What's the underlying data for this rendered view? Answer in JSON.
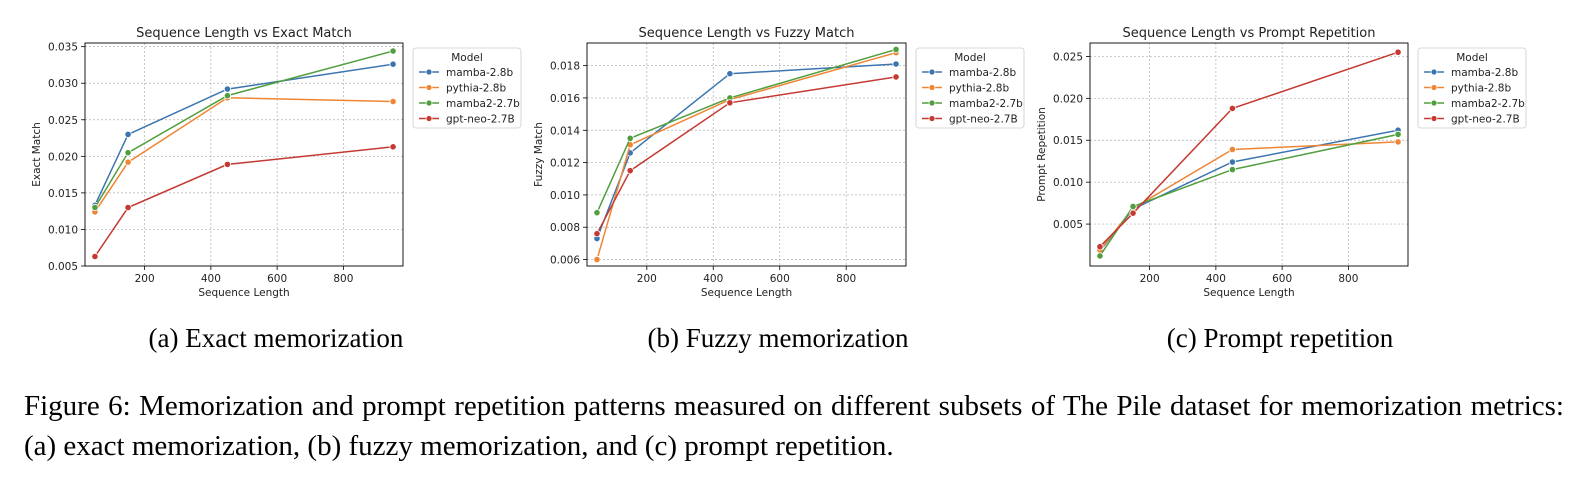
{
  "chart_data": [
    {
      "type": "line",
      "title": "Sequence Length vs Exact Match",
      "xlabel": "Sequence Length",
      "ylabel": "Exact Match",
      "x": [
        50,
        150,
        450,
        950
      ],
      "xlim": [
        20,
        980
      ],
      "xticks": [
        200,
        400,
        600,
        800
      ],
      "ylim": [
        0.005,
        0.0355
      ],
      "yticks": [
        0.005,
        0.01,
        0.015,
        0.02,
        0.025,
        0.03,
        0.035
      ],
      "ytick_labels": [
        "0.005",
        "0.010",
        "0.015",
        "0.020",
        "0.025",
        "0.030",
        "0.035"
      ],
      "grid": true,
      "legend_title": "Model",
      "legend_position": "outside-right",
      "series": [
        {
          "name": "mamba-2.8b",
          "color": "#3b75af",
          "values": [
            0.0133,
            0.023,
            0.0292,
            0.0326
          ]
        },
        {
          "name": "pythia-2.8b",
          "color": "#ef8636",
          "values": [
            0.0124,
            0.0192,
            0.028,
            0.0275
          ]
        },
        {
          "name": "mamba2-2.7b",
          "color": "#519e3e",
          "values": [
            0.013,
            0.0205,
            0.0283,
            0.0344
          ]
        },
        {
          "name": "gpt-neo-2.7B",
          "color": "#c53932",
          "values": [
            0.0063,
            0.013,
            0.0189,
            0.0213
          ]
        }
      ],
      "subcaption": "(a) Exact memorization"
    },
    {
      "type": "line",
      "title": "Sequence Length vs Fuzzy Match",
      "xlabel": "Sequence Length",
      "ylabel": "Fuzzy Match",
      "x": [
        50,
        150,
        450,
        950
      ],
      "xlim": [
        20,
        980
      ],
      "xticks": [
        200,
        400,
        600,
        800
      ],
      "ylim": [
        0.0056,
        0.0194
      ],
      "yticks": [
        0.006,
        0.008,
        0.01,
        0.012,
        0.014,
        0.016,
        0.018
      ],
      "ytick_labels": [
        "0.006",
        "0.008",
        "0.010",
        "0.012",
        "0.014",
        "0.016",
        "0.018"
      ],
      "grid": true,
      "legend_title": "Model",
      "legend_position": "outside-right",
      "series": [
        {
          "name": "mamba-2.8b",
          "color": "#3b75af",
          "values": [
            0.0073,
            0.0126,
            0.0175,
            0.0181
          ]
        },
        {
          "name": "pythia-2.8b",
          "color": "#ef8636",
          "values": [
            0.006,
            0.0131,
            0.0159,
            0.0188
          ]
        },
        {
          "name": "mamba2-2.7b",
          "color": "#519e3e",
          "values": [
            0.0089,
            0.0135,
            0.016,
            0.019
          ]
        },
        {
          "name": "gpt-neo-2.7B",
          "color": "#c53932",
          "values": [
            0.0076,
            0.0115,
            0.0157,
            0.0173
          ]
        }
      ],
      "subcaption": "(b) Fuzzy memorization"
    },
    {
      "type": "line",
      "title": "Sequence Length vs Prompt Repetition",
      "xlabel": "Sequence Length",
      "ylabel": "Prompt Repetition",
      "x": [
        50,
        150,
        450,
        950
      ],
      "xlim": [
        20,
        980
      ],
      "xticks": [
        200,
        400,
        600,
        800
      ],
      "ylim": [
        0.0,
        0.0266
      ],
      "yticks": [
        0.005,
        0.01,
        0.015,
        0.02,
        0.025
      ],
      "ytick_labels": [
        "0.005",
        "0.010",
        "0.015",
        "0.020",
        "0.025"
      ],
      "grid": true,
      "legend_title": "Model",
      "legend_position": "outside-right",
      "series": [
        {
          "name": "mamba-2.8b",
          "color": "#3b75af",
          "values": [
            0.0018,
            0.0068,
            0.0124,
            0.0162
          ]
        },
        {
          "name": "pythia-2.8b",
          "color": "#ef8636",
          "values": [
            0.0019,
            0.0069,
            0.0139,
            0.0148
          ]
        },
        {
          "name": "mamba2-2.7b",
          "color": "#519e3e",
          "values": [
            0.0012,
            0.0071,
            0.0115,
            0.0157
          ]
        },
        {
          "name": "gpt-neo-2.7B",
          "color": "#c53932",
          "values": [
            0.0023,
            0.0063,
            0.0188,
            0.0255
          ]
        }
      ],
      "subcaption": "(c) Prompt repetition"
    }
  ],
  "caption": "Figure 6:  Memorization and prompt repetition patterns measured on different subsets of The Pile dataset for memorization metrics: (a) exact memorization, (b) fuzzy memorization, and (c) prompt repetition."
}
